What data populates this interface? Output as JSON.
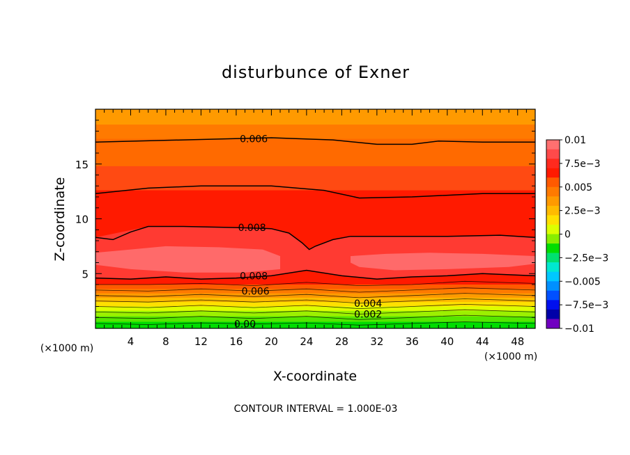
{
  "chart_data": {
    "type": "heatmap",
    "subtype": "filled-contour",
    "title": "disturbunce of Exner",
    "xlabel": "X-coordinate",
    "ylabel": "Z-coordinate",
    "x_unit": "(×1000 m)",
    "z_unit": "(×1000 m)",
    "xlim": [
      0,
      50
    ],
    "ylim": [
      0,
      20
    ],
    "x_ticks": [
      4,
      8,
      12,
      16,
      20,
      24,
      28,
      32,
      36,
      40,
      44,
      48
    ],
    "y_ticks": [
      5,
      10,
      15
    ],
    "footer": "CONTOUR INTERVAL = 1.000E-03",
    "contour_interval": 0.001,
    "colorbar": {
      "labels": [
        "0.01",
        "7.5e-3",
        "0.005",
        "2.5e-3",
        "0",
        "-2.5e-3",
        "-0.005",
        "-7.5e-3",
        "-0.01"
      ],
      "values": [
        0.01,
        0.0075,
        0.005,
        0.0025,
        0,
        -0.0025,
        -0.005,
        -0.0075,
        -0.01
      ],
      "colors_top_to_bottom": [
        "#ff7070",
        "#ff4a4a",
        "#ff2a1e",
        "#ff1a00",
        "#ff5a00",
        "#ff7a00",
        "#ff9a00",
        "#ffbb00",
        "#ffe000",
        "#ddff00",
        "#88ee00",
        "#00dd00",
        "#00e070",
        "#00e8d0",
        "#00c8ff",
        "#0090ff",
        "#0050ff",
        "#0010ee",
        "#0000a8",
        "#7000c0"
      ]
    },
    "contour_labels": [
      {
        "text": "0.006",
        "x": 18.0,
        "z": 17.3
      },
      {
        "text": "0.008",
        "x": 17.8,
        "z": 9.2
      },
      {
        "text": "0.008",
        "x": 18.0,
        "z": 4.8
      },
      {
        "text": "0.006",
        "x": 18.2,
        "z": 3.4
      },
      {
        "text": "0.004",
        "x": 31.0,
        "z": 2.3
      },
      {
        "text": "0.002",
        "x": 31.0,
        "z": 1.3
      },
      {
        "text": "0.00",
        "x": 17.0,
        "z": 0.4
      }
    ],
    "contour_lines": [
      {
        "level": 0.006,
        "x": [
          0,
          10,
          20,
          27,
          32,
          36,
          39,
          44,
          50
        ],
        "z": [
          17.0,
          17.2,
          17.4,
          17.2,
          16.8,
          16.8,
          17.1,
          17.0,
          17.0
        ]
      },
      {
        "level": 0.007,
        "x": [
          0,
          6,
          12,
          20,
          26,
          30,
          36,
          44,
          50
        ],
        "z": [
          12.3,
          12.8,
          13.0,
          13.0,
          12.6,
          11.9,
          12.0,
          12.3,
          12.3
        ]
      },
      {
        "level": 0.008,
        "x": [
          0,
          2,
          4,
          6,
          10,
          16,
          20,
          22,
          23.5,
          24.3,
          25,
          27,
          29,
          33,
          40,
          46,
          50
        ],
        "z": [
          8.3,
          8.1,
          8.8,
          9.3,
          9.3,
          9.2,
          9.1,
          8.7,
          7.8,
          7.2,
          7.5,
          8.1,
          8.4,
          8.4,
          8.4,
          8.5,
          8.3
        ]
      },
      {
        "level": 0.008,
        "x": [
          0,
          4,
          8,
          12,
          16,
          20,
          24,
          28,
          32,
          36,
          40,
          44,
          50
        ],
        "z": [
          4.6,
          4.5,
          4.7,
          4.5,
          4.6,
          4.8,
          5.3,
          4.8,
          4.5,
          4.7,
          4.8,
          5.0,
          4.8
        ]
      },
      {
        "level": 0.007,
        "x": [
          0,
          6,
          12,
          18,
          24,
          30,
          36,
          42,
          50
        ],
        "z": [
          4.0,
          4.0,
          4.1,
          3.9,
          4.2,
          3.9,
          4.0,
          4.3,
          4.1
        ]
      },
      {
        "level": 0.006,
        "x": [
          0,
          6,
          12,
          18,
          24,
          30,
          36,
          42,
          50
        ],
        "z": [
          3.5,
          3.4,
          3.6,
          3.4,
          3.6,
          3.3,
          3.5,
          3.7,
          3.5
        ]
      },
      {
        "level": 0.005,
        "x": [
          0,
          6,
          12,
          18,
          24,
          30,
          36,
          42,
          50
        ],
        "z": [
          3.0,
          2.9,
          3.1,
          2.9,
          3.1,
          2.8,
          3.0,
          3.2,
          3.0
        ]
      },
      {
        "level": 0.004,
        "x": [
          0,
          6,
          12,
          18,
          24,
          30,
          36,
          42,
          50
        ],
        "z": [
          2.5,
          2.4,
          2.6,
          2.4,
          2.6,
          2.3,
          2.5,
          2.7,
          2.5
        ]
      },
      {
        "level": 0.003,
        "x": [
          0,
          6,
          12,
          18,
          24,
          30,
          36,
          42,
          50
        ],
        "z": [
          2.0,
          1.9,
          2.1,
          1.9,
          2.1,
          1.8,
          2.0,
          2.2,
          2.0
        ]
      },
      {
        "level": 0.002,
        "x": [
          0,
          6,
          12,
          18,
          24,
          30,
          36,
          42,
          50
        ],
        "z": [
          1.5,
          1.4,
          1.6,
          1.4,
          1.6,
          1.3,
          1.5,
          1.7,
          1.5
        ]
      },
      {
        "level": 0.001,
        "x": [
          0,
          6,
          12,
          18,
          24,
          30,
          36,
          42,
          50
        ],
        "z": [
          1.0,
          0.9,
          1.1,
          0.9,
          1.1,
          0.8,
          1.0,
          1.2,
          1.0
        ]
      },
      {
        "level": 0.0,
        "x": [
          0,
          6,
          12,
          18,
          24,
          30,
          36,
          42,
          50
        ],
        "z": [
          0.45,
          0.35,
          0.5,
          0.4,
          0.5,
          0.3,
          0.45,
          0.6,
          0.45
        ]
      }
    ],
    "fill_bands": [
      {
        "z_top": 20.0,
        "z_bottom": 18.6,
        "color": "#ff9a00"
      },
      {
        "z_top": 18.6,
        "z_bottom": 17.3,
        "color": "#ff7a00"
      },
      {
        "z_top": 17.3,
        "z_bottom": 14.8,
        "color": "#ff6a00"
      },
      {
        "z_top": 14.8,
        "z_bottom": 12.6,
        "color": "#ff4a12"
      },
      {
        "z_top": 12.6,
        "z_bottom": 4.0,
        "color": "#ff1a00"
      },
      {
        "z_top": 4.0,
        "z_bottom": 3.6,
        "color": "#ff5a00"
      },
      {
        "z_top": 3.6,
        "z_bottom": 3.2,
        "color": "#ff7a00"
      },
      {
        "z_top": 3.2,
        "z_bottom": 2.8,
        "color": "#ff9a00"
      },
      {
        "z_top": 2.8,
        "z_bottom": 2.4,
        "color": "#ffbb00"
      },
      {
        "z_top": 2.4,
        "z_bottom": 2.0,
        "color": "#ffe000"
      },
      {
        "z_top": 2.0,
        "z_bottom": 1.6,
        "color": "#ddff00"
      },
      {
        "z_top": 1.6,
        "z_bottom": 1.1,
        "color": "#9cf000"
      },
      {
        "z_top": 1.1,
        "z_bottom": 0.6,
        "color": "#55e600"
      },
      {
        "z_top": 0.6,
        "z_bottom": 0.0,
        "color": "#00dd00"
      }
    ],
    "inner_region": {
      "color": "#ff3a32",
      "x": [
        0,
        6,
        10,
        16,
        20,
        22,
        23.5,
        24.3,
        25,
        27,
        29,
        33,
        40,
        46,
        50,
        50,
        44,
        40,
        36,
        32,
        28,
        24,
        20,
        16,
        12,
        8,
        4,
        0
      ],
      "z": [
        8.3,
        9.3,
        9.3,
        9.2,
        9.1,
        8.7,
        7.8,
        7.2,
        7.5,
        8.1,
        8.4,
        8.4,
        8.4,
        8.5,
        8.3,
        4.8,
        5.0,
        4.8,
        4.7,
        4.5,
        4.8,
        5.3,
        4.8,
        4.6,
        4.5,
        4.7,
        4.5,
        4.6
      ]
    },
    "max_regions": [
      {
        "color": "#ff6a6a",
        "x": [
          0,
          4,
          8,
          14,
          19,
          21,
          21,
          17,
          10,
          4,
          0
        ],
        "z": [
          6.9,
          7.2,
          7.5,
          7.4,
          7.2,
          6.6,
          5.4,
          5.1,
          5.1,
          5.4,
          5.8
        ]
      },
      {
        "color": "#ff6a6a",
        "x": [
          29,
          33,
          38,
          44,
          50,
          50,
          47,
          40,
          34,
          30,
          29
        ],
        "z": [
          6.6,
          6.8,
          6.9,
          6.8,
          6.6,
          5.9,
          5.6,
          5.4,
          5.3,
          5.6,
          6.0
        ]
      }
    ]
  }
}
